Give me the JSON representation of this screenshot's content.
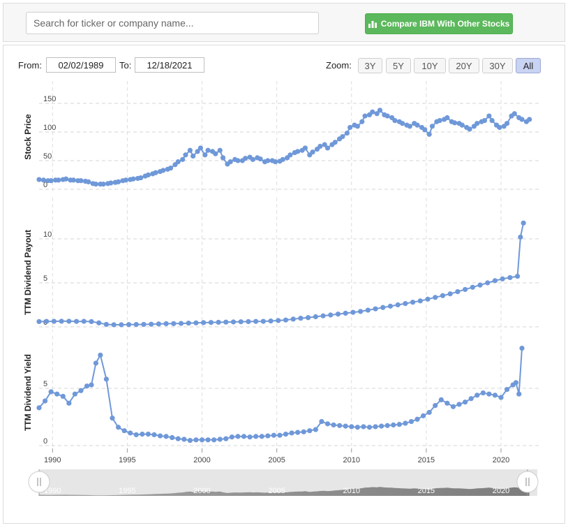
{
  "search": {
    "placeholder": "Search for ticker or company name..."
  },
  "compare_button": {
    "label": "Compare IBM With Other Stocks",
    "icon": "bar-chart-icon",
    "color": "#5cb85c"
  },
  "range": {
    "from_label": "From:",
    "from_value": "02/02/1989",
    "to_label": "To:",
    "to_value": "12/18/2021"
  },
  "zoom": {
    "label": "Zoom:",
    "buttons": [
      "3Y",
      "5Y",
      "10Y",
      "20Y",
      "30Y",
      "All"
    ],
    "active": "All"
  },
  "colors": {
    "series": "#6f98d8",
    "navigator": "#777777"
  },
  "chart_data": [
    {
      "type": "line",
      "ylabel": "Stock Price",
      "yticks": [
        0,
        50,
        100,
        150
      ],
      "x": [
        1989.1,
        1989.4,
        1989.7,
        1989.9,
        1990.2,
        1990.4,
        1990.7,
        1990.9,
        1991.2,
        1991.4,
        1991.7,
        1991.9,
        1992.2,
        1992.4,
        1992.7,
        1992.9,
        1993.2,
        1993.4,
        1993.7,
        1993.9,
        1994.2,
        1994.4,
        1994.7,
        1994.9,
        1995.2,
        1995.4,
        1995.7,
        1995.9,
        1996.2,
        1996.4,
        1996.7,
        1996.9,
        1997.2,
        1997.4,
        1997.7,
        1997.9,
        1998.2,
        1998.4,
        1998.7,
        1998.9,
        1999.2,
        1999.4,
        1999.7,
        1999.9,
        2000.2,
        2000.4,
        2000.7,
        2000.9,
        2001.2,
        2001.4,
        2001.7,
        2001.9,
        2002.2,
        2002.4,
        2002.7,
        2002.9,
        2003.2,
        2003.4,
        2003.7,
        2003.9,
        2004.2,
        2004.4,
        2004.7,
        2004.9,
        2005.2,
        2005.4,
        2005.7,
        2005.9,
        2006.2,
        2006.4,
        2006.7,
        2006.9,
        2007.2,
        2007.4,
        2007.7,
        2007.9,
        2008.2,
        2008.4,
        2008.7,
        2008.9,
        2009.2,
        2009.4,
        2009.7,
        2009.9,
        2010.2,
        2010.4,
        2010.7,
        2010.9,
        2011.2,
        2011.4,
        2011.7,
        2011.9,
        2012.2,
        2012.4,
        2012.7,
        2012.9,
        2013.2,
        2013.4,
        2013.7,
        2013.9,
        2014.2,
        2014.4,
        2014.7,
        2014.9,
        2015.2,
        2015.4,
        2015.7,
        2015.9,
        2016.2,
        2016.4,
        2016.7,
        2016.9,
        2017.2,
        2017.4,
        2017.7,
        2017.9,
        2018.2,
        2018.4,
        2018.7,
        2018.9,
        2019.2,
        2019.4,
        2019.7,
        2019.9,
        2020.2,
        2020.4,
        2020.7,
        2020.9,
        2021.2,
        2021.4,
        2021.7,
        2021.9
      ],
      "values": [
        17,
        16,
        15,
        15,
        16,
        16,
        17,
        18,
        16,
        16,
        15,
        15,
        14,
        13,
        10,
        9,
        9,
        9,
        10,
        11,
        12,
        13,
        15,
        16,
        17,
        18,
        19,
        20,
        23,
        25,
        27,
        29,
        31,
        33,
        35,
        37,
        43,
        48,
        52,
        60,
        68,
        58,
        66,
        72,
        60,
        68,
        66,
        62,
        68,
        55,
        44,
        48,
        52,
        50,
        50,
        54,
        56,
        52,
        55,
        53,
        48,
        50,
        50,
        48,
        49,
        52,
        55,
        60,
        64,
        66,
        68,
        72,
        60,
        65,
        70,
        75,
        78,
        72,
        78,
        82,
        88,
        92,
        98,
        108,
        112,
        110,
        118,
        128,
        130,
        135,
        132,
        138,
        130,
        128,
        125,
        120,
        118,
        115,
        112,
        110,
        115,
        112,
        108,
        104,
        96,
        110,
        118,
        120,
        122,
        125,
        118,
        116,
        115,
        112,
        108,
        105,
        110,
        115,
        118,
        120,
        128,
        120,
        112,
        108,
        110,
        115,
        128,
        132,
        125,
        122,
        118,
        122
      ]
    },
    {
      "type": "line",
      "ylabel": "TTM Dividend Payout",
      "yticks": [
        0,
        5,
        10
      ],
      "x": [
        1989.1,
        1989.6,
        1990.1,
        1990.6,
        1991.1,
        1991.6,
        1992.1,
        1992.6,
        1993.1,
        1993.6,
        1994.1,
        1994.6,
        1995.1,
        1995.6,
        1996.1,
        1996.6,
        1997.1,
        1997.6,
        1998.1,
        1998.6,
        1999.1,
        1999.6,
        2000.1,
        2000.6,
        2001.1,
        2001.6,
        2002.1,
        2002.6,
        2003.1,
        2003.6,
        2004.1,
        2004.6,
        2005.1,
        2005.6,
        2006.1,
        2006.6,
        2007.1,
        2007.6,
        2008.1,
        2008.6,
        2009.1,
        2009.6,
        2010.1,
        2010.6,
        2011.1,
        2011.6,
        2012.1,
        2012.6,
        2013.1,
        2013.6,
        2014.1,
        2014.6,
        2015.1,
        2015.6,
        2016.1,
        2016.6,
        2017.1,
        2017.6,
        2018.1,
        2018.6,
        2019.1,
        2019.6,
        2020.1,
        2020.6,
        2021.1,
        2021.3,
        2021.5
      ],
      "values": [
        0.6,
        0.62,
        0.63,
        0.64,
        0.64,
        0.62,
        0.63,
        0.6,
        0.45,
        0.28,
        0.24,
        0.24,
        0.26,
        0.27,
        0.28,
        0.3,
        0.33,
        0.36,
        0.37,
        0.39,
        0.42,
        0.45,
        0.48,
        0.5,
        0.52,
        0.54,
        0.56,
        0.58,
        0.6,
        0.62,
        0.63,
        0.67,
        0.72,
        0.78,
        0.88,
        0.98,
        1.05,
        1.15,
        1.25,
        1.35,
        1.45,
        1.55,
        1.65,
        1.75,
        1.9,
        2.05,
        2.2,
        2.35,
        2.5,
        2.65,
        2.8,
        2.95,
        3.15,
        3.35,
        3.55,
        3.75,
        4.0,
        4.25,
        4.5,
        4.75,
        5.0,
        5.25,
        5.45,
        5.6,
        5.75,
        10.2,
        11.8
      ]
    },
    {
      "type": "line",
      "ylabel": "TTM Dividend Yield",
      "yticks": [
        0,
        5
      ],
      "x": [
        1989.1,
        1989.5,
        1989.9,
        1990.3,
        1990.7,
        1991.1,
        1991.5,
        1991.9,
        1992.3,
        1992.6,
        1992.9,
        1993.2,
        1993.6,
        1994.0,
        1994.4,
        1994.8,
        1995.2,
        1995.6,
        1996.0,
        1996.4,
        1996.8,
        1997.2,
        1997.6,
        1998.0,
        1998.4,
        1998.8,
        1999.2,
        1999.6,
        2000.0,
        2000.4,
        2000.8,
        2001.2,
        2001.6,
        2002.0,
        2002.4,
        2002.8,
        2003.2,
        2003.6,
        2004.0,
        2004.4,
        2004.8,
        2005.2,
        2005.6,
        2006.0,
        2006.4,
        2006.8,
        2007.2,
        2007.6,
        2008.0,
        2008.4,
        2008.8,
        2009.2,
        2009.6,
        2010.0,
        2010.4,
        2010.8,
        2011.2,
        2011.6,
        2012.0,
        2012.4,
        2012.8,
        2013.2,
        2013.6,
        2014.0,
        2014.4,
        2014.8,
        2015.2,
        2015.6,
        2016.0,
        2016.4,
        2016.8,
        2017.2,
        2017.6,
        2018.0,
        2018.4,
        2018.8,
        2019.2,
        2019.6,
        2020.0,
        2020.4,
        2020.8,
        2021.0,
        2021.2,
        2021.4
      ],
      "values": [
        3.3,
        3.9,
        4.7,
        4.5,
        4.3,
        3.7,
        4.5,
        4.8,
        5.2,
        5.3,
        7.2,
        7.9,
        5.8,
        2.4,
        1.6,
        1.3,
        1.1,
        0.95,
        1.0,
        1.0,
        0.95,
        0.85,
        0.8,
        0.7,
        0.6,
        0.55,
        0.45,
        0.5,
        0.5,
        0.5,
        0.5,
        0.55,
        0.6,
        0.75,
        0.8,
        0.8,
        0.75,
        0.8,
        0.8,
        0.85,
        0.9,
        0.9,
        1.0,
        1.1,
        1.15,
        1.2,
        1.3,
        1.4,
        2.1,
        1.9,
        1.8,
        1.75,
        1.7,
        1.65,
        1.6,
        1.65,
        1.6,
        1.65,
        1.7,
        1.75,
        1.8,
        1.85,
        1.95,
        2.1,
        2.3,
        2.6,
        2.9,
        3.5,
        4.0,
        3.7,
        3.4,
        3.6,
        3.8,
        4.1,
        4.4,
        4.6,
        4.5,
        4.4,
        4.2,
        4.9,
        5.3,
        5.5,
        4.5,
        8.5
      ]
    }
  ],
  "x_axis": {
    "ticks": [
      1990,
      1995,
      2000,
      2005,
      2010,
      2015,
      2020
    ],
    "range": [
      1989.1,
      2021.96
    ]
  },
  "navigator": {
    "ticks": [
      1990,
      1995,
      2000,
      2005,
      2010,
      2015,
      2020
    ]
  }
}
